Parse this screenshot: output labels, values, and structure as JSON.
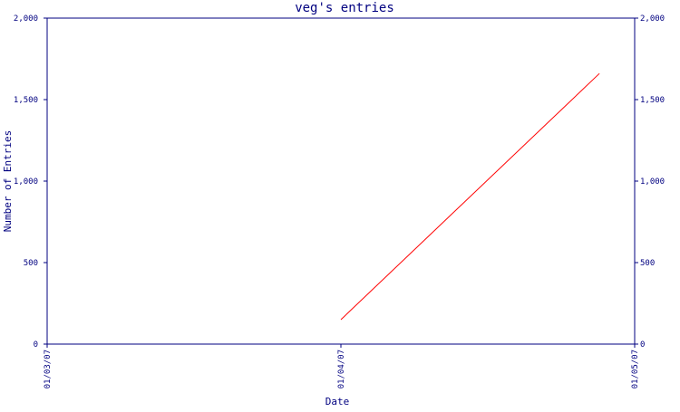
{
  "chart_data": {
    "type": "line",
    "title": "veg's entries",
    "xlabel": "Date",
    "ylabel": "Number of Entries",
    "x_ticks": [
      "01/03/07",
      "01/04/07",
      "01/05/07"
    ],
    "y_ticks": [
      "0",
      "500",
      "1,000",
      "1,500",
      "2,000"
    ],
    "y_tick_values": [
      0,
      500,
      1000,
      1500,
      2000
    ],
    "xlim": [
      "01/03/07",
      "01/05/07"
    ],
    "ylim": [
      0,
      2000
    ],
    "right_axis": true,
    "grid": false,
    "series": [
      {
        "color": "#ff0000",
        "points": [
          {
            "x": "01/04/07",
            "y": 150
          },
          {
            "x": "01/04/07 + 0.89 of a month",
            "y": 1660
          }
        ],
        "x_fraction": [
          0.5,
          0.94
        ],
        "y": [
          150,
          1660
        ]
      }
    ]
  },
  "colors": {
    "axis": "#000080",
    "text": "#000080",
    "line": "#ff0000",
    "background": "#ffffff"
  }
}
